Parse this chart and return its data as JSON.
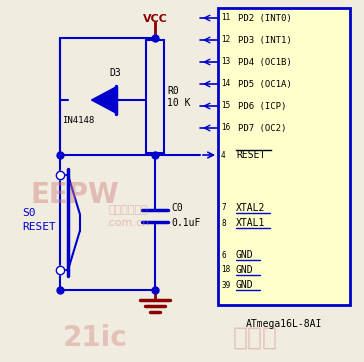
{
  "bg_color": "#f0ede0",
  "circuit_color": "#0000cc",
  "dark_red": "#8b0000",
  "text_color": "#000000",
  "ic_bg": "#ffffcc",
  "ic_border": "#0000cc",
  "vcc_label": "VCC",
  "d3_label": "D3",
  "d3_part": "IN4148",
  "r0_label": "R0",
  "r0_val": "10 K",
  "c0_label": "C0",
  "c0_val": "0.1uF",
  "s0_label": "S0",
  "s0_sub": "RESET",
  "ic_name": "ATmega16L-8AI",
  "pins_right": [
    "PD2 (INT0)",
    "PD3 (INT1)",
    "PD4 (OC1B)",
    "PD5 (OC1A)",
    "PD6 (ICP)",
    "PD7 (OC2)"
  ],
  "pin_nums_top": [
    "11",
    "12",
    "13",
    "14",
    "15",
    "16"
  ],
  "reset_pin": "4",
  "reset_label": "RESET",
  "xtal2_pin": "7",
  "xtal1_pin": "8",
  "gnd_pins": [
    "6",
    "18",
    "39"
  ],
  "gnd_label": "GND",
  "wm1": "EEPW",
  "wm2": "电子产品世界",
  "wm3": ".com.cn",
  "wm4": "21ic",
  "wm5": "电子网"
}
